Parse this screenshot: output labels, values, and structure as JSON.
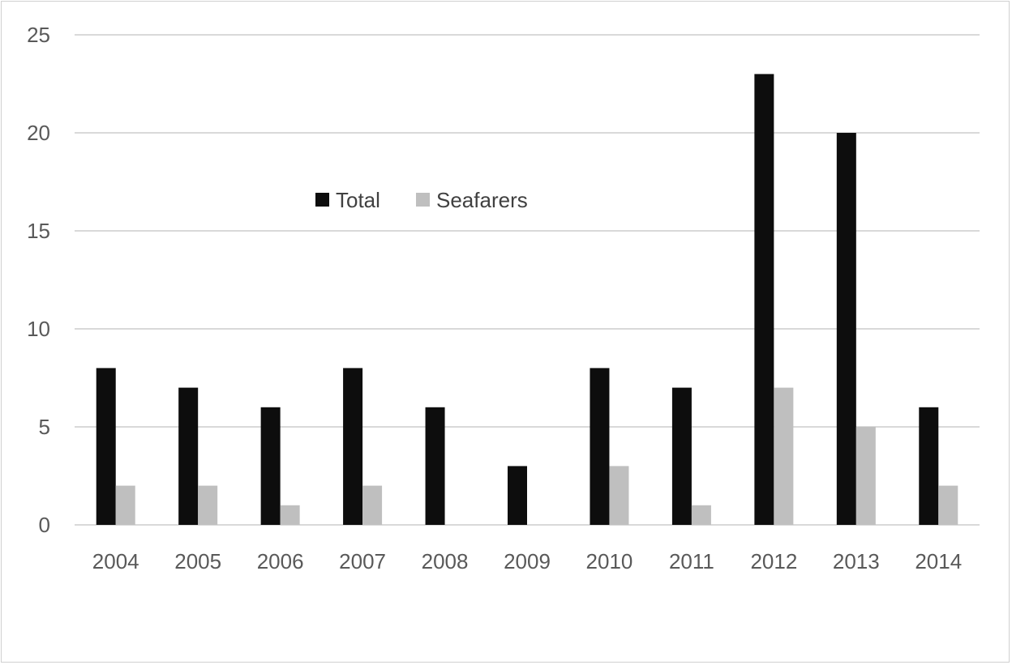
{
  "chart_data": {
    "type": "bar",
    "title": "",
    "xlabel": "",
    "ylabel": "",
    "categories": [
      "2004",
      "2005",
      "2006",
      "2007",
      "2008",
      "2009",
      "2010",
      "2011",
      "2012",
      "2013",
      "2014"
    ],
    "series": [
      {
        "name": "Total",
        "color": "#0d0d0d",
        "values": [
          8,
          7,
          6,
          8,
          6,
          3,
          8,
          7,
          23,
          20,
          6
        ]
      },
      {
        "name": "Seafarers",
        "color": "#bfbfbf",
        "values": [
          2,
          2,
          1,
          2,
          0,
          0,
          3,
          1,
          7,
          5,
          2
        ]
      }
    ],
    "ylim": [
      0,
      25
    ],
    "yticks": [
      0,
      5,
      10,
      15,
      20,
      25
    ],
    "grid": true,
    "legend_position": "upper-left-inside"
  }
}
